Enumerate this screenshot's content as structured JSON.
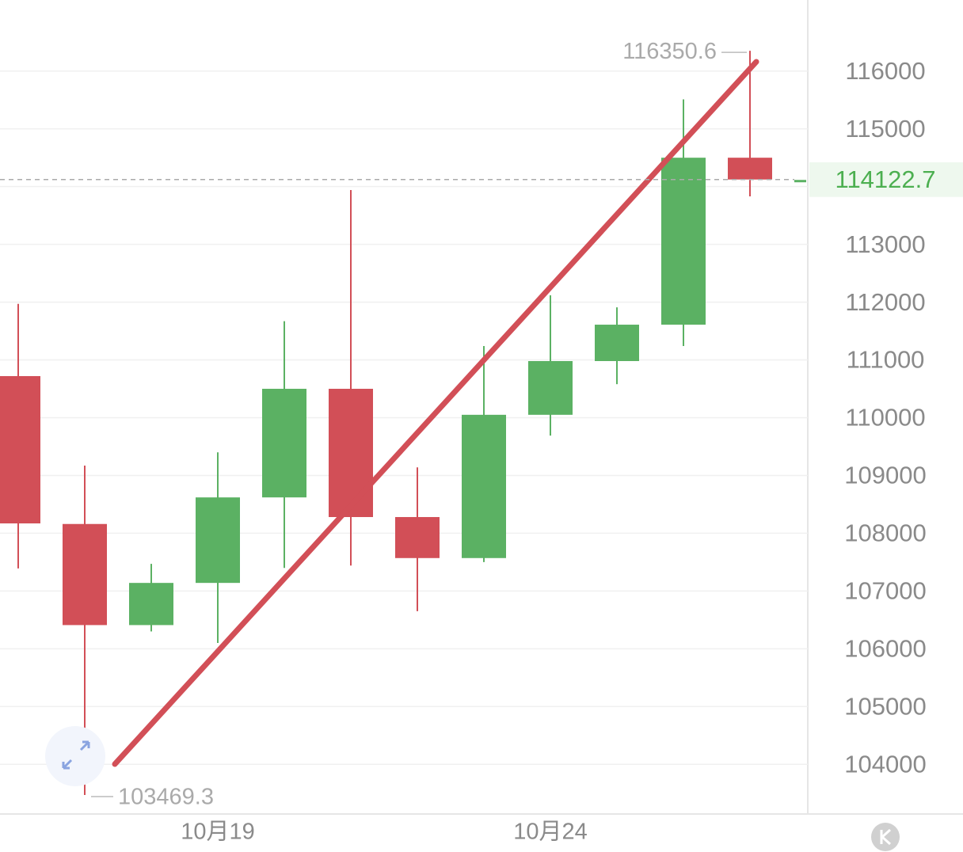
{
  "chart_data": {
    "type": "candlestick",
    "categories": [
      null,
      null,
      null,
      "10月19",
      null,
      null,
      null,
      null,
      "10月24",
      null,
      null,
      null
    ],
    "open": [
      110720,
      108160,
      106410,
      107140,
      108620,
      110500,
      108280,
      107570,
      110050,
      110980,
      111610,
      114500
    ],
    "high": [
      111970,
      109170,
      107470,
      109400,
      111670,
      113940,
      109140,
      111240,
      112120,
      111910,
      115510,
      116350.6
    ],
    "low": [
      107390,
      103469.3,
      106300,
      106100,
      107400,
      107440,
      106650,
      107500,
      109690,
      110580,
      111240,
      113830
    ],
    "close": [
      108170,
      106410,
      107140,
      108620,
      110500,
      108280,
      107570,
      110050,
      110980,
      111610,
      114500,
      114122.7
    ],
    "up_color": "#5bb163",
    "down_color": "#d24f57",
    "ylim": [
      103140,
      117230
    ],
    "yticks": [
      104000,
      105000,
      106000,
      107000,
      108000,
      109000,
      110000,
      111000,
      112000,
      113000,
      114000,
      115000,
      116000
    ],
    "grid": true
  }
}
